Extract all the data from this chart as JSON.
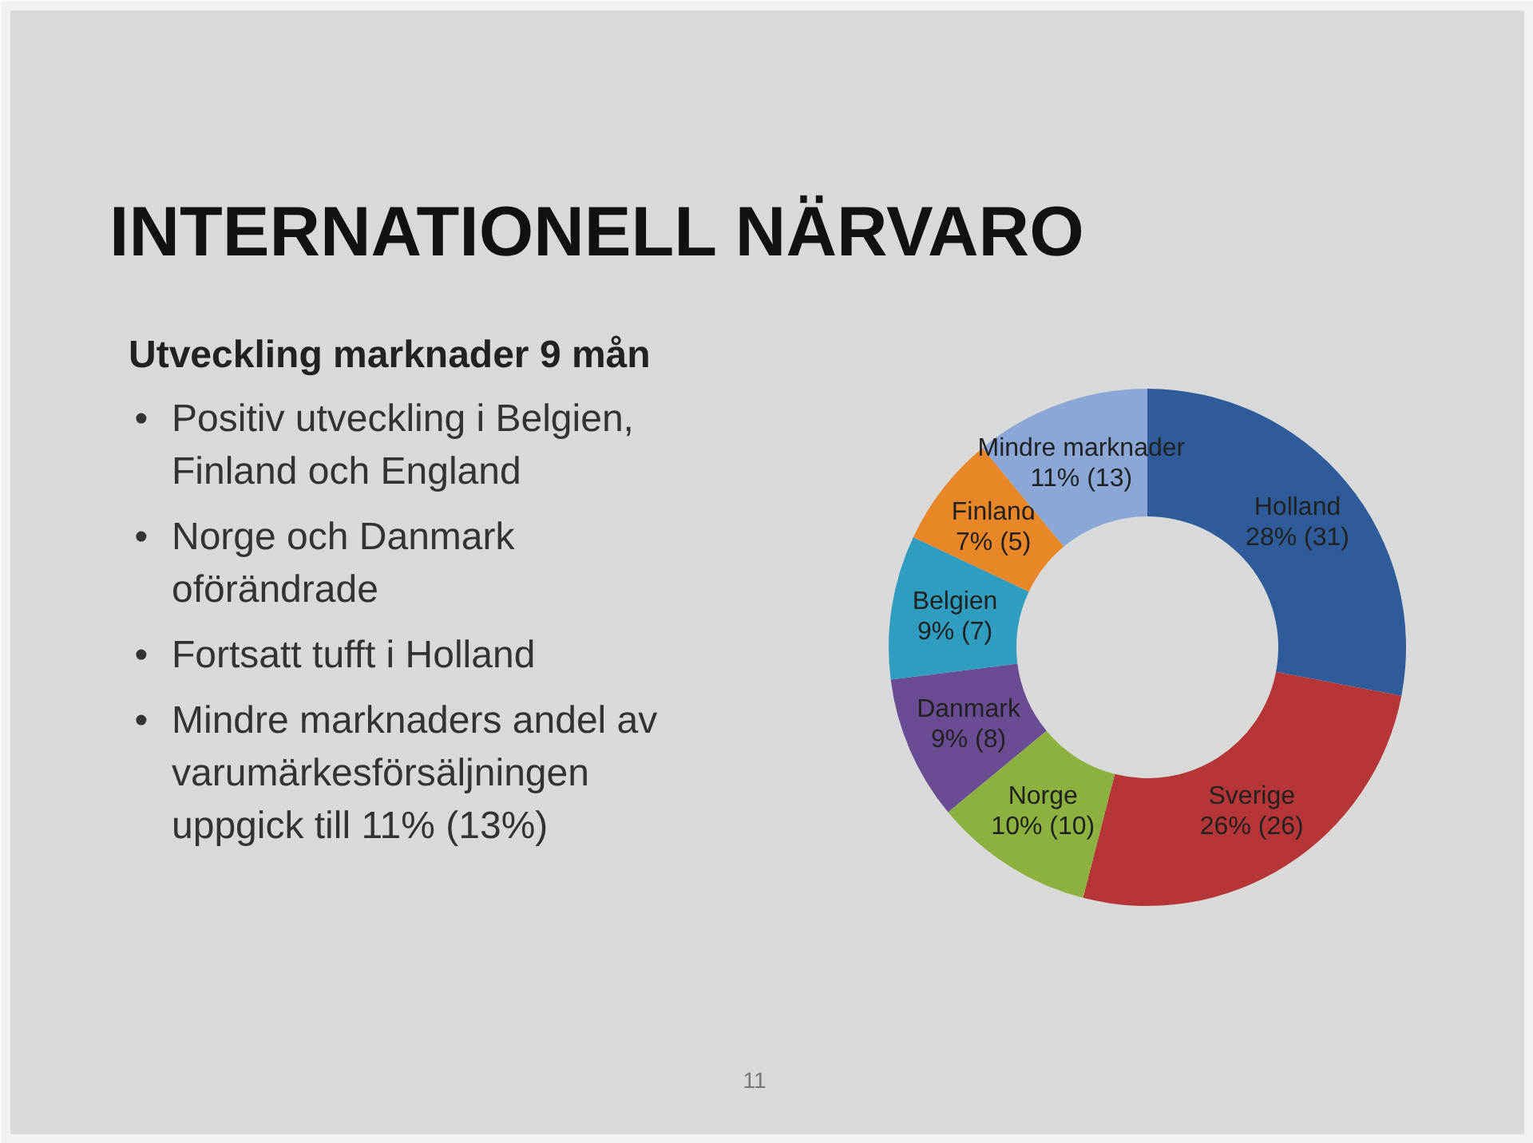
{
  "chart_data": {
    "type": "donut",
    "title": "INTERNATIONELL NÄRVARO",
    "subtitle": "Utveckling marknader 9 mån",
    "categories": [
      "Holland",
      "Sverige",
      "Norge",
      "Danmark",
      "Belgien",
      "Finland",
      "Mindre marknader"
    ],
    "values": [
      28,
      26,
      10,
      9,
      9,
      7,
      11
    ],
    "value_labels": [
      "28% (31)",
      "26% (26)",
      "10% (10)",
      "9% (8)",
      "9% (7)",
      "7% (5)",
      "11% (13)"
    ],
    "colors": [
      "#2e5c9a",
      "#b63537",
      "#8cb13f",
      "#694c94",
      "#2f9dc0",
      "#e98628",
      "#8aa7d8"
    ],
    "annotations": [
      "• Positiv utveckling i Belgien,\nFinland och England",
      "• Norge och Danmark\noförändrade",
      "• Fortsatt tufft i Holland",
      "• Mindre marknaders andel av\nvarumärkesförsäljningen\nuppgick till 11% (13%)",
      "11"
    ]
  }
}
